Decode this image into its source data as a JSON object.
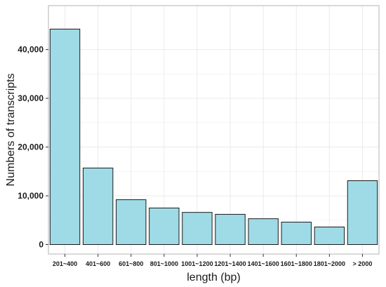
{
  "chart_data": {
    "type": "bar",
    "title": "",
    "xlabel": "length (bp)",
    "ylabel": "Numbers of transcripts",
    "categories": [
      "201~400",
      "401~600",
      "601~800",
      "801~1000",
      "1001~1200",
      "1201~1400",
      "1401~1600",
      "1601~1800",
      "1801~2000",
      "> 2000"
    ],
    "values": [
      44200,
      15700,
      9200,
      7500,
      6600,
      6200,
      5300,
      4600,
      3600,
      13100
    ],
    "ylim": [
      0,
      47000
    ],
    "yticks": [
      0,
      10000,
      20000,
      30000,
      40000
    ],
    "ytick_labels": [
      "0",
      "10,000",
      "20,000",
      "30,000",
      "40,000"
    ],
    "grid": true,
    "colors": {
      "bar_fill": "#9edbe6",
      "bar_stroke": "#1a1a1a",
      "grid": "#ececec",
      "frame": "#b3b3b3"
    }
  }
}
